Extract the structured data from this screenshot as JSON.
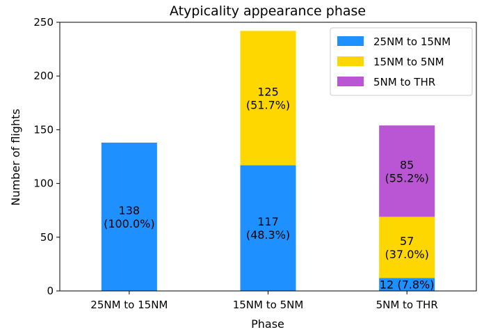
{
  "chart_data": {
    "type": "bar",
    "stacked": true,
    "title": "Atypicality appearance phase",
    "xlabel": "Phase",
    "ylabel": "Number of flights",
    "ylim": [
      0,
      250
    ],
    "yticks": [
      0,
      50,
      100,
      150,
      200,
      250
    ],
    "grid": false,
    "legend_position": "top-right",
    "categories": [
      "25NM to 15NM",
      "15NM to 5NM",
      "5NM to THR"
    ],
    "series": [
      {
        "name": "25NM to 15NM",
        "color": "#1e90ff",
        "values": [
          138,
          117,
          12
        ],
        "labels": [
          [
            "138",
            "(100.0%)"
          ],
          [
            "117",
            "(48.3%)"
          ],
          [
            "12 (7.8%)"
          ]
        ]
      },
      {
        "name": "15NM to 5NM",
        "color": "#ffd700",
        "values": [
          0,
          125,
          57
        ],
        "labels": [
          [],
          [
            "125",
            "(51.7%)"
          ],
          [
            "57",
            "(37.0%)"
          ]
        ]
      },
      {
        "name": "5NM to THR",
        "color": "#ba55d3",
        "values": [
          0,
          0,
          85
        ],
        "labels": [
          [],
          [],
          [
            "85",
            "(55.2%)"
          ]
        ]
      }
    ]
  }
}
